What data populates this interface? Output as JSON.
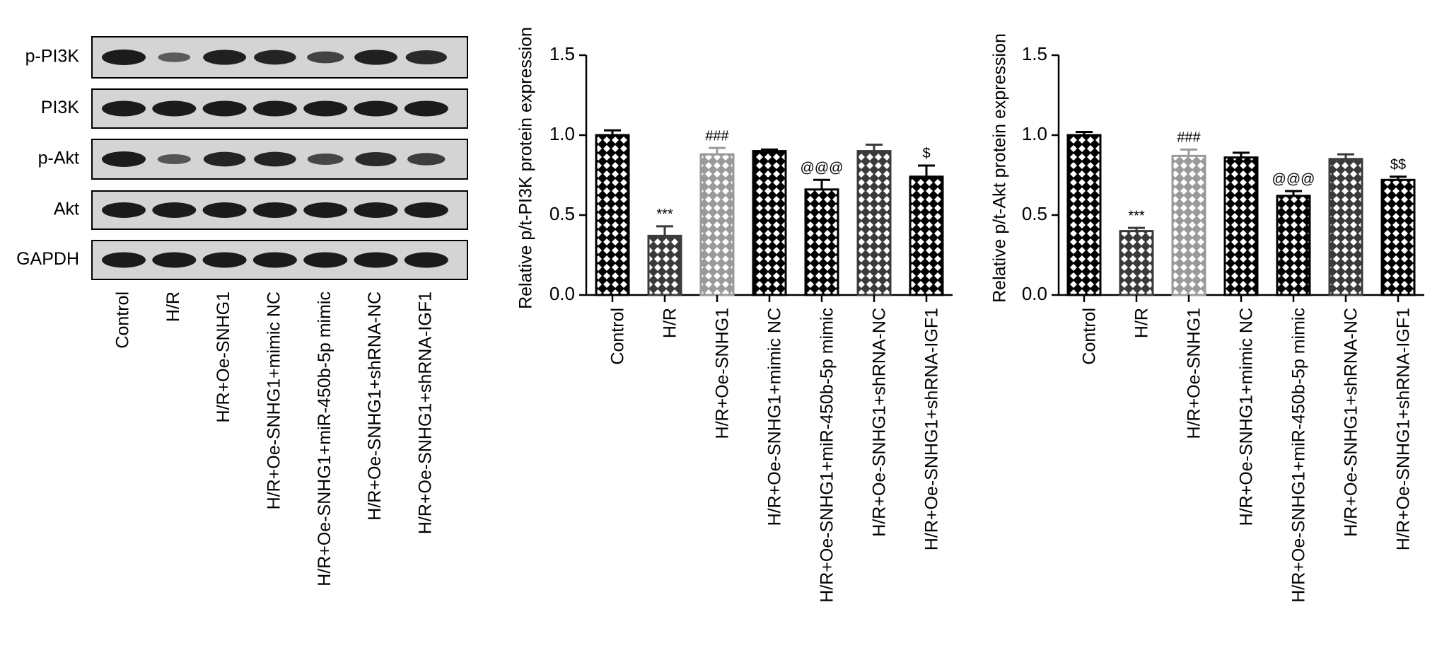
{
  "blot": {
    "rows": [
      "p-PI3K",
      "PI3K",
      "p-Akt",
      "Akt",
      "GAPDH"
    ],
    "lanes": [
      "Control",
      "H/R",
      "H/R+Oe-SNHG1",
      "H/R+Oe-SNHG1+mimic NC",
      "H/R+Oe-SNHG1+miR-450b-5p mimic",
      "H/R+Oe-SNHG1+shRNA-NC",
      "H/R+Oe-SNHG1+shRNA-IGF1"
    ]
  },
  "chart_data": [
    {
      "type": "bar",
      "y_label": "Relative p/t-PI3K protein expression",
      "categories": [
        "Control",
        "H/R",
        "H/R+Oe-SNHG1",
        "H/R+Oe-SNHG1+mimic NC",
        "H/R+Oe-SNHG1+miR-450b-5p mimic",
        "H/R+Oe-SNHG1+shRNA-NC",
        "H/R+Oe-SNHG1+shRNA-IGF1"
      ],
      "values": [
        1.0,
        0.37,
        0.88,
        0.9,
        0.66,
        0.9,
        0.74
      ],
      "errors": [
        0.03,
        0.06,
        0.04,
        0.01,
        0.06,
        0.04,
        0.07
      ],
      "annotations": [
        null,
        "***",
        "###",
        null,
        "@@@",
        null,
        "$"
      ],
      "colors": [
        "#000000",
        "#3a3a3a",
        "#9a9a9a",
        "#000000",
        "#000000",
        "#3a3a3a",
        "#000000"
      ],
      "ylim": [
        0,
        1.5
      ],
      "yticks": [
        {
          "value": 0,
          "label": "0.0"
        },
        0.5,
        {
          "value": 1,
          "label": "1.0"
        },
        1.5
      ]
    },
    {
      "type": "bar",
      "y_label": "Relative p/t-Akt protein expression",
      "categories": [
        "Control",
        "H/R",
        "H/R+Oe-SNHG1",
        "H/R+Oe-SNHG1+mimic NC",
        "H/R+Oe-SNHG1+miR-450b-5p mimic",
        "H/R+Oe-SNHG1+shRNA-NC",
        "H/R+Oe-SNHG1+shRNA-IGF1"
      ],
      "values": [
        1.0,
        0.4,
        0.87,
        0.86,
        0.62,
        0.85,
        0.72
      ],
      "errors": [
        0.02,
        0.02,
        0.04,
        0.03,
        0.03,
        0.03,
        0.02
      ],
      "annotations": [
        null,
        "***",
        "###",
        null,
        "@@@",
        null,
        "$$"
      ],
      "colors": [
        "#000000",
        "#3a3a3a",
        "#9a9a9a",
        "#000000",
        "#000000",
        "#3a3a3a",
        "#000000"
      ],
      "ylim": [
        0,
        1.5
      ],
      "yticks": [
        {
          "value": 0,
          "label": "0.0"
        },
        0.5,
        {
          "value": 1,
          "label": "1.0"
        },
        1.5
      ]
    }
  ]
}
